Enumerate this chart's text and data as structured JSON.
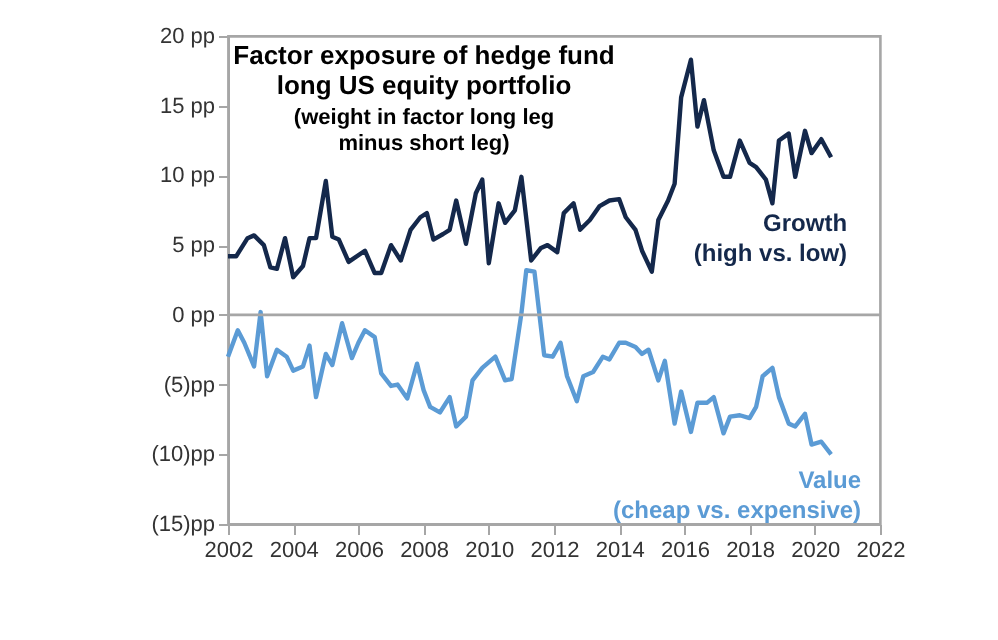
{
  "chart_data": {
    "type": "line",
    "title": "Factor exposure of hedge fund\nlong US equity portfolio",
    "subtitle": "(weight in factor long leg\nminus short leg)",
    "xlim": [
      2002,
      2022
    ],
    "xticks": [
      2002,
      2004,
      2006,
      2008,
      2010,
      2012,
      2014,
      2016,
      2018,
      2020,
      2022
    ],
    "ylim": [
      -15,
      20
    ],
    "yticks": [
      {
        "value": -15,
        "label": "(15)pp"
      },
      {
        "value": -10,
        "label": "(10)pp"
      },
      {
        "value": -5,
        "label": "(5)pp"
      },
      {
        "value": 0,
        "label": "0 pp"
      },
      {
        "value": 5,
        "label": "5 pp"
      },
      {
        "value": 10,
        "label": "10 pp"
      },
      {
        "value": 15,
        "label": "15 pp"
      },
      {
        "value": 20,
        "label": "20 pp"
      }
    ],
    "grid": false,
    "legend": false,
    "marker": "none",
    "line_style": "solid",
    "ref_lines": [
      {
        "axis": "y",
        "value": 0,
        "color": "#a6a6a6"
      }
    ],
    "series": [
      {
        "name": "Growth\n(high vs. low)",
        "color": "#14284b",
        "x": [
          2002.0,
          2002.25,
          2002.6,
          2002.8,
          2003.1,
          2003.3,
          2003.5,
          2003.75,
          2004.0,
          2004.3,
          2004.5,
          2004.7,
          2005.0,
          2005.2,
          2005.4,
          2005.7,
          2006.2,
          2006.5,
          2006.7,
          2007.0,
          2007.3,
          2007.6,
          2007.9,
          2008.1,
          2008.3,
          2008.6,
          2008.8,
          2009.0,
          2009.3,
          2009.6,
          2009.8,
          2010.0,
          2010.3,
          2010.5,
          2010.8,
          2011.0,
          2011.3,
          2011.6,
          2011.8,
          2012.1,
          2012.3,
          2012.6,
          2012.8,
          2013.1,
          2013.4,
          2013.7,
          2014.0,
          2014.2,
          2014.5,
          2014.7,
          2015.0,
          2015.2,
          2015.5,
          2015.7,
          2015.9,
          2016.2,
          2016.4,
          2016.6,
          2016.9,
          2017.2,
          2017.4,
          2017.7,
          2018.0,
          2018.2,
          2018.5,
          2018.7,
          2018.9,
          2019.2,
          2019.4,
          2019.7,
          2019.9,
          2020.2,
          2020.5
        ],
        "values": [
          4.2,
          4.2,
          5.5,
          5.7,
          5.0,
          3.4,
          3.3,
          5.5,
          2.7,
          3.5,
          5.5,
          5.5,
          9.6,
          5.6,
          5.4,
          3.8,
          4.6,
          3.0,
          3.0,
          5.0,
          3.9,
          6.1,
          7.0,
          7.3,
          5.4,
          5.8,
          6.1,
          8.2,
          5.1,
          8.7,
          9.7,
          3.7,
          8.0,
          6.6,
          7.5,
          9.9,
          3.9,
          4.8,
          5.0,
          4.5,
          7.3,
          8.0,
          6.1,
          6.8,
          7.8,
          8.2,
          8.3,
          7.0,
          6.1,
          4.6,
          3.1,
          6.8,
          8.2,
          9.4,
          15.6,
          18.3,
          13.5,
          15.4,
          11.8,
          9.9,
          9.9,
          12.5,
          10.9,
          10.6,
          9.7,
          8.0,
          12.5,
          13.0,
          9.9,
          13.2,
          11.6,
          12.6,
          11.3
        ]
      },
      {
        "name": "Value\n(cheap vs. expensive)",
        "color": "#5b9bd5",
        "x": [
          2002.0,
          2002.3,
          2002.5,
          2002.8,
          2003.0,
          2003.2,
          2003.5,
          2003.8,
          2004.0,
          2004.3,
          2004.5,
          2004.7,
          2005.0,
          2005.2,
          2005.5,
          2005.8,
          2006.0,
          2006.2,
          2006.5,
          2006.7,
          2007.0,
          2007.2,
          2007.5,
          2007.8,
          2008.0,
          2008.2,
          2008.5,
          2008.8,
          2009.0,
          2009.3,
          2009.5,
          2009.8,
          2010.2,
          2010.5,
          2010.7,
          2011.0,
          2011.15,
          2011.4,
          2011.7,
          2011.96,
          2012.2,
          2012.4,
          2012.7,
          2012.9,
          2013.2,
          2013.5,
          2013.7,
          2014.0,
          2014.2,
          2014.5,
          2014.7,
          2014.9,
          2015.2,
          2015.4,
          2015.7,
          2015.9,
          2016.2,
          2016.4,
          2016.7,
          2016.9,
          2017.2,
          2017.4,
          2017.7,
          2018.0,
          2018.2,
          2018.4,
          2018.7,
          2018.9,
          2019.2,
          2019.4,
          2019.7,
          2019.9,
          2020.2,
          2020.5
        ],
        "values": [
          -3.0,
          -1.1,
          -2.0,
          -3.7,
          0.2,
          -4.4,
          -2.5,
          -3.0,
          -4.0,
          -3.7,
          -2.2,
          -5.9,
          -2.8,
          -3.6,
          -0.6,
          -3.1,
          -2.0,
          -1.1,
          -1.6,
          -4.2,
          -5.1,
          -5.0,
          -6.0,
          -3.5,
          -5.4,
          -6.6,
          -7.0,
          -5.9,
          -8.0,
          -7.3,
          -4.7,
          -3.8,
          -3.0,
          -4.7,
          -4.6,
          0.1,
          3.2,
          3.1,
          -2.9,
          -3.0,
          -2.0,
          -4.4,
          -6.2,
          -4.4,
          -4.1,
          -3.0,
          -3.2,
          -2.0,
          -2.0,
          -2.3,
          -2.8,
          -2.5,
          -4.7,
          -3.3,
          -7.8,
          -5.5,
          -8.4,
          -6.3,
          -6.3,
          -5.9,
          -8.5,
          -7.3,
          -7.2,
          -7.4,
          -6.6,
          -4.4,
          -3.8,
          -5.9,
          -7.8,
          -8.0,
          -7.1,
          -9.3,
          -9.1,
          -10.0
        ]
      }
    ]
  }
}
